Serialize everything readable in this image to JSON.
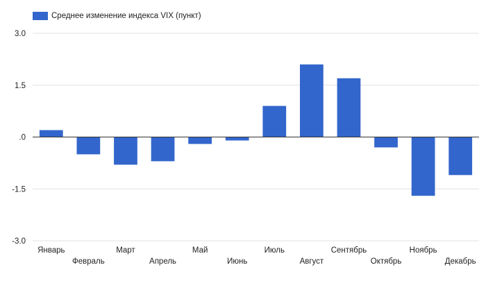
{
  "chart_data": {
    "type": "bar",
    "categories": [
      "Январь",
      "Февраль",
      "Март",
      "Апрель",
      "Май",
      "Июнь",
      "Июль",
      "Август",
      "Сентябрь",
      "Октябрь",
      "Ноябрь",
      "Декабрь"
    ],
    "series": [
      {
        "name": "Среднее изменение индекса VIX (пункт)",
        "values": [
          0.2,
          -0.5,
          -0.8,
          -0.7,
          -0.2,
          -0.1,
          0.9,
          2.1,
          1.7,
          -0.3,
          -1.7,
          -1.1
        ]
      }
    ],
    "yticks": [
      3.0,
      1.5,
      0.0,
      -1.5,
      -3.0
    ],
    "ytick_labels": [
      "3.0",
      "1.5",
      ".0",
      "-1.5",
      "-3.0"
    ],
    "ylim": [
      -3.0,
      3.0
    ],
    "grid": true,
    "legend_position": "top-left",
    "colors": {
      "bar": "#3366cc",
      "grid": "#e0e0e0",
      "zero_line": "#333333"
    }
  }
}
